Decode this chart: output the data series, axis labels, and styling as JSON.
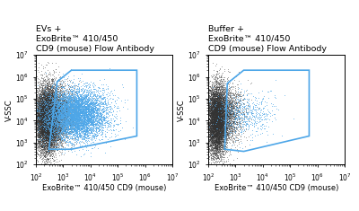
{
  "panel1_title": "EVs +\nExoBrite™ 410/450\nCD9 (mouse) Flow Antibody",
  "panel2_title": "Buffer +\nExoBrite™ 410/450\nCD9 (mouse) Flow Antibody",
  "xlabel": "ExoBrite™ 410/450 CD9 (mouse)",
  "ylabel": "V-SSC",
  "xlim_log": [
    100,
    10000000.0
  ],
  "ylim_log": [
    100,
    10000000.0
  ],
  "gate1_poly_x": [
    300,
    2000,
    500000,
    500000,
    2000,
    600
  ],
  "gate1_poly_y": [
    500,
    500,
    2000,
    2000000,
    2000000,
    600000
  ],
  "gate2_poly_x": [
    400,
    2000,
    500000,
    500000,
    2000,
    500
  ],
  "gate2_poly_y": [
    500,
    400,
    2000,
    2000000,
    2000000,
    500000
  ],
  "gate_color": "#4da6e8",
  "gate_lw": 1.2,
  "dot_color_dark": "#333333",
  "dot_color_blue": "#4da6e8",
  "dot_alpha_dark": 0.4,
  "dot_alpha_blue": 0.55,
  "dot_size_dark": 0.4,
  "dot_size_blue": 0.5,
  "title_fontsize": 6.8,
  "axis_label_fontsize": 6.0,
  "tick_fontsize": 5.5,
  "background_color": "#ffffff",
  "n_dark1": 12000,
  "n_blue1": 7000,
  "n_dark2": 10000,
  "n_blue2": 600,
  "seed": 42
}
